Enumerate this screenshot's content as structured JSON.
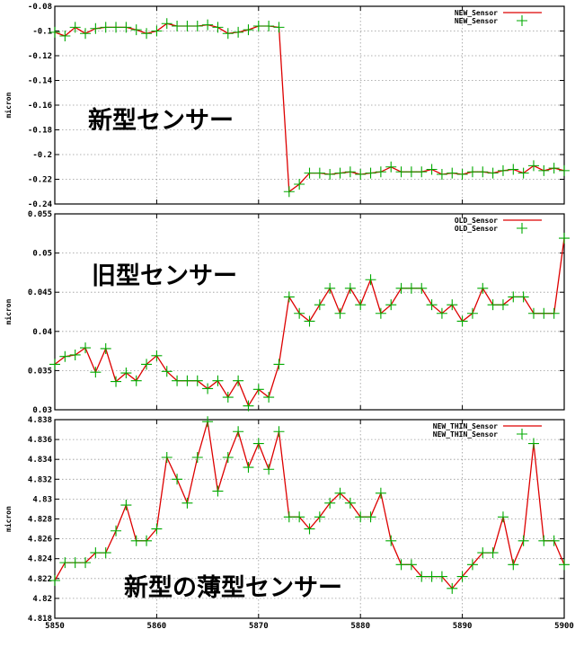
{
  "chart_data": [
    {
      "type": "line",
      "annotation": "新型センサー",
      "ylabel": "micron",
      "ylim": [
        -0.24,
        -0.08
      ],
      "yticks": [
        -0.08,
        -0.1,
        -0.12,
        -0.14,
        -0.16,
        -0.18,
        -0.2,
        -0.22,
        -0.24
      ],
      "ytick_labels": [
        "-0.08",
        "-0.1",
        "-0.12",
        "-0.14",
        "-0.16",
        "-0.18",
        "-0.2",
        "-0.22",
        "-0.24"
      ],
      "xlim": [
        5850,
        5900
      ],
      "xticks": [
        5850,
        5860,
        5870,
        5880,
        5890,
        5900
      ],
      "xtick_labels": [],
      "grid": true,
      "legend_position": "top-right",
      "line_color": "#dd0000",
      "marker_color": "#00aa00",
      "series": [
        {
          "name": "NEW_Sensor",
          "x": [
            5850,
            5851,
            5852,
            5853,
            5854,
            5855,
            5856,
            5857,
            5858,
            5859,
            5860,
            5861,
            5862,
            5863,
            5864,
            5865,
            5866,
            5867,
            5868,
            5869,
            5870,
            5871,
            5872,
            5873,
            5874,
            5875,
            5876,
            5877,
            5878,
            5879,
            5880,
            5881,
            5882,
            5883,
            5884,
            5885,
            5886,
            5887,
            5888,
            5889,
            5890,
            5891,
            5892,
            5893,
            5894,
            5895,
            5896,
            5897,
            5898,
            5899,
            5900
          ],
          "values": [
            -0.101,
            -0.104,
            -0.097,
            -0.102,
            -0.098,
            -0.097,
            -0.097,
            -0.097,
            -0.099,
            -0.102,
            -0.1,
            -0.094,
            -0.096,
            -0.096,
            -0.096,
            -0.095,
            -0.097,
            -0.102,
            -0.101,
            -0.099,
            -0.096,
            -0.096,
            -0.097,
            -0.23,
            -0.224,
            -0.215,
            -0.215,
            -0.216,
            -0.215,
            -0.214,
            -0.216,
            -0.215,
            -0.214,
            -0.21,
            -0.214,
            -0.214,
            -0.214,
            -0.212,
            -0.216,
            -0.215,
            -0.216,
            -0.214,
            -0.214,
            -0.215,
            -0.213,
            -0.212,
            -0.215,
            -0.209,
            -0.213,
            -0.211,
            -0.213
          ]
        }
      ]
    },
    {
      "type": "line",
      "annotation": "旧型センサー",
      "ylabel": "micron",
      "ylim": [
        0.03,
        0.055
      ],
      "yticks": [
        0.03,
        0.035,
        0.04,
        0.045,
        0.05,
        0.055
      ],
      "ytick_labels": [
        "0.03",
        "0.035",
        "0.04",
        "0.045",
        "0.05",
        "0.055"
      ],
      "xlim": [
        5850,
        5900
      ],
      "xticks": [
        5850,
        5860,
        5870,
        5880,
        5890,
        5900
      ],
      "xtick_labels": [],
      "grid": true,
      "legend_position": "top-right",
      "line_color": "#dd0000",
      "marker_color": "#00aa00",
      "series": [
        {
          "name": "OLD_Sensor",
          "x": [
            5850,
            5851,
            5852,
            5853,
            5854,
            5855,
            5856,
            5857,
            5858,
            5859,
            5860,
            5861,
            5862,
            5863,
            5864,
            5865,
            5866,
            5867,
            5868,
            5869,
            5870,
            5871,
            5872,
            5873,
            5874,
            5875,
            5876,
            5877,
            5878,
            5879,
            5880,
            5881,
            5882,
            5883,
            5884,
            5885,
            5886,
            5887,
            5888,
            5889,
            5890,
            5891,
            5892,
            5893,
            5894,
            5895,
            5896,
            5897,
            5898,
            5899,
            5900
          ],
          "values": [
            0.0358,
            0.0368,
            0.037,
            0.0379,
            0.0348,
            0.0378,
            0.0336,
            0.0347,
            0.0337,
            0.0358,
            0.0369,
            0.0349,
            0.0337,
            0.0337,
            0.0337,
            0.0327,
            0.0337,
            0.0316,
            0.0337,
            0.0305,
            0.0326,
            0.0316,
            0.0358,
            0.0444,
            0.0423,
            0.0413,
            0.0434,
            0.0455,
            0.0423,
            0.0455,
            0.0434,
            0.0466,
            0.0423,
            0.0434,
            0.0455,
            0.0455,
            0.0455,
            0.0434,
            0.0423,
            0.0434,
            0.0413,
            0.0423,
            0.0455,
            0.0434,
            0.0434,
            0.0444,
            0.0444,
            0.0423,
            0.0423,
            0.0423,
            0.0519
          ]
        }
      ]
    },
    {
      "type": "line",
      "annotation": "新型の薄型センサー",
      "ylabel": "micron",
      "ylim": [
        4.818,
        4.838
      ],
      "yticks": [
        4.818,
        4.82,
        4.822,
        4.824,
        4.826,
        4.828,
        4.83,
        4.832,
        4.834,
        4.836,
        4.838
      ],
      "ytick_labels": [
        "4.818",
        "4.82",
        "4.822",
        "4.824",
        "4.826",
        "4.828",
        "4.83",
        "4.832",
        "4.834",
        "4.836",
        "4.838"
      ],
      "xlim": [
        5850,
        5900
      ],
      "xticks": [
        5850,
        5860,
        5870,
        5880,
        5890,
        5900
      ],
      "xtick_labels": [
        "5850",
        "5860",
        "5870",
        "5880",
        "5890",
        "5900"
      ],
      "grid": true,
      "legend_position": "top-right",
      "line_color": "#dd0000",
      "marker_color": "#00aa00",
      "series": [
        {
          "name": "NEW_THIN_Sensor",
          "x": [
            5850,
            5851,
            5852,
            5853,
            5854,
            5855,
            5856,
            5857,
            5858,
            5859,
            5860,
            5861,
            5862,
            5863,
            5864,
            5865,
            5866,
            5867,
            5868,
            5869,
            5870,
            5871,
            5872,
            5873,
            5874,
            5875,
            5876,
            5877,
            5878,
            5879,
            5880,
            5881,
            5882,
            5883,
            5884,
            5885,
            5886,
            5887,
            5888,
            5889,
            5890,
            5891,
            5892,
            5893,
            5894,
            5895,
            5896,
            5897,
            5898,
            5899,
            5900
          ],
          "values": [
            4.8218,
            4.8236,
            4.8236,
            4.8236,
            4.8246,
            4.8246,
            4.8268,
            4.8294,
            4.8258,
            4.8258,
            4.827,
            4.8342,
            4.832,
            4.8296,
            4.8342,
            4.8378,
            4.8308,
            4.8342,
            4.8368,
            4.8332,
            4.8356,
            4.833,
            4.8368,
            4.8282,
            4.8282,
            4.827,
            4.8282,
            4.8296,
            4.8306,
            4.8296,
            4.8282,
            4.8282,
            4.8306,
            4.8258,
            4.8234,
            4.8234,
            4.8222,
            4.8222,
            4.8222,
            4.821,
            4.8222,
            4.8234,
            4.8246,
            4.8246,
            4.8282,
            4.8234,
            4.8258,
            4.8356,
            4.8258,
            4.8258,
            4.8234
          ]
        }
      ]
    }
  ]
}
